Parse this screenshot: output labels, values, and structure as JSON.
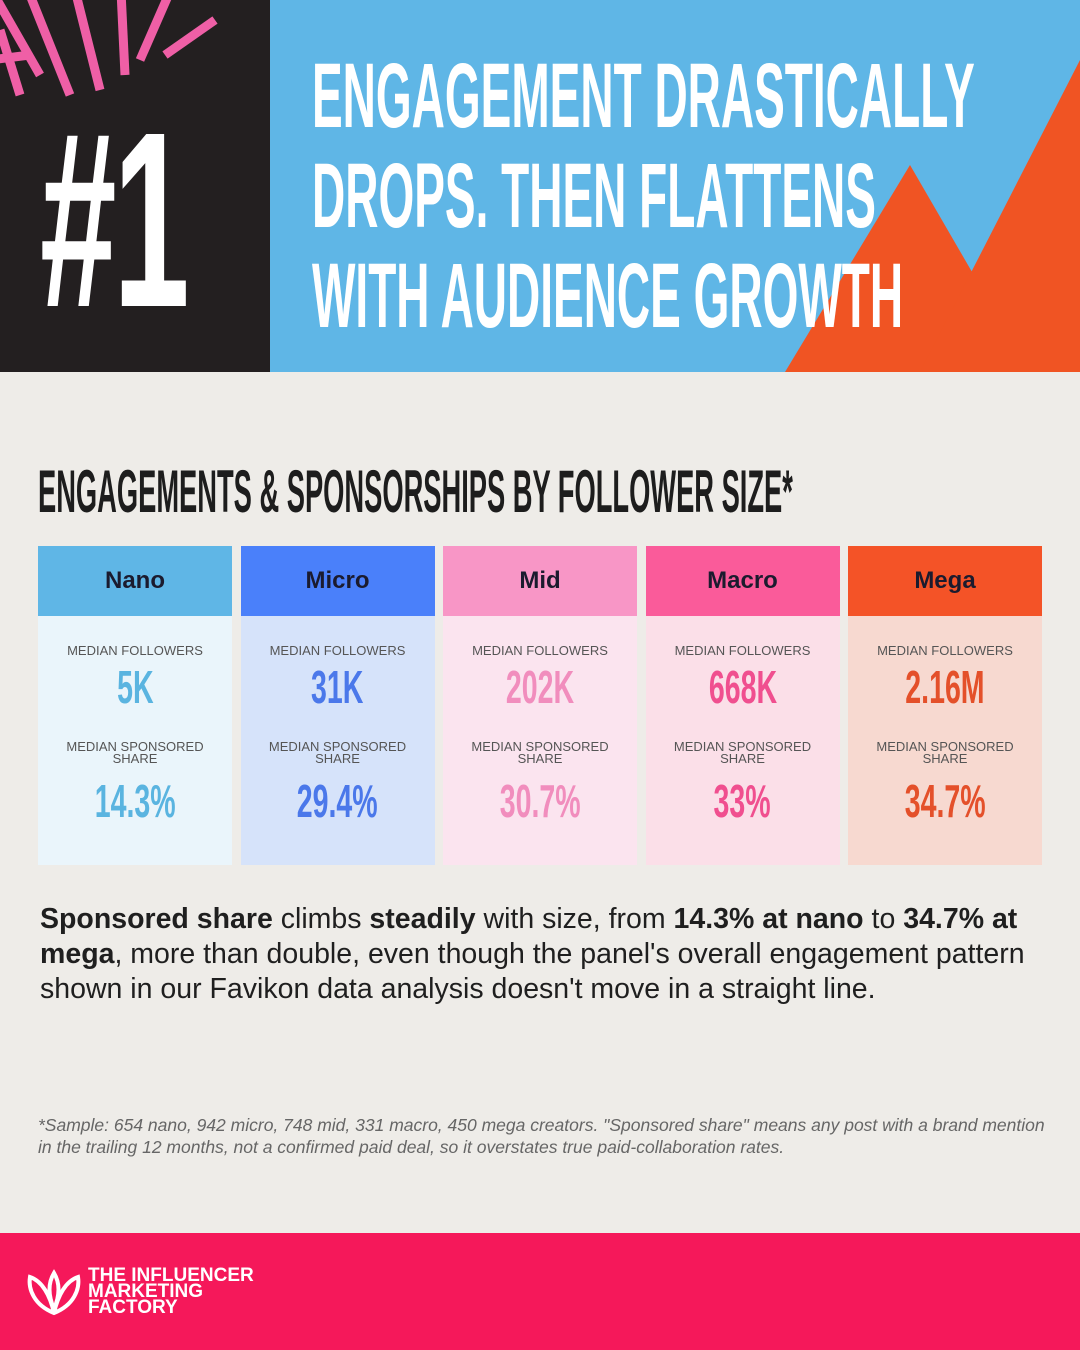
{
  "header": {
    "number": "#1",
    "title_lines": [
      "ENGAGEMENT DRASTICALLY",
      "DROPS. THEN FLATTENS",
      "WITH AUDIENCE GROWTH"
    ]
  },
  "section_title": "ENGAGEMENTS & SPONSORSHIPS BY FOLLOWER SIZE*",
  "cards": [
    {
      "name": "Nano",
      "followers_label": "MEDIAN FOLLOWERS",
      "followers": "5K",
      "share_label": "MEDIAN SPONSORED SHARE",
      "share": "14.3%"
    },
    {
      "name": "Micro",
      "followers_label": "MEDIAN FOLLOWERS",
      "followers": "31K",
      "share_label": "MEDIAN SPONSORED SHARE",
      "share": "29.4%"
    },
    {
      "name": "Mid",
      "followers_label": "MEDIAN FOLLOWERS",
      "followers": "202K",
      "share_label": "MEDIAN SPONSORED SHARE",
      "share": "30.7%"
    },
    {
      "name": "Macro",
      "followers_label": "MEDIAN FOLLOWERS",
      "followers": "668K",
      "share_label": "MEDIAN SPONSORED SHARE",
      "share": "33%"
    },
    {
      "name": "Mega",
      "followers_label": "MEDIAN FOLLOWERS",
      "followers": "2.16M",
      "share_label": "MEDIAN SPONSORED SHARE",
      "share": "34.7%"
    }
  ],
  "paragraph": [
    {
      "text": "Sponsored share",
      "bold": true
    },
    {
      "text": " climbs ",
      "bold": false
    },
    {
      "text": "steadily",
      "bold": true
    },
    {
      "text": " with size, from ",
      "bold": false
    },
    {
      "text": "14.3% at nano",
      "bold": true
    },
    {
      "text": " to ",
      "bold": false
    },
    {
      "text": "34.7% at mega",
      "bold": true
    },
    {
      "text": ", more than double, even though the panel's overall engagement pattern shown in our Favikon data analysis doesn't move in a straight line.",
      "bold": false
    }
  ],
  "footnote": "*Sample: 654 nano, 942 micro, 748 mid, 331 macro, 450 mega creators. \"Sponsored share\" means any post with a brand mention in the trailing 12 months, not a confirmed paid deal, so it overstates true paid-collaboration rates.",
  "logo_lines": [
    "THE INFLUENCER",
    "MARKETING",
    "FACTORY"
  ]
}
